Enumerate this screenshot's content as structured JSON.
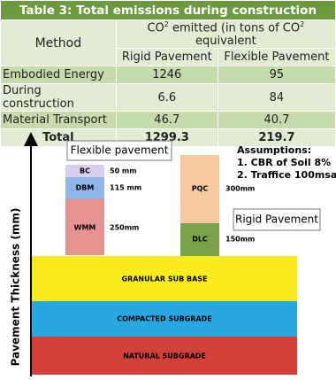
{
  "table": {
    "title": "Table 3: Total emissions during construction",
    "header": {
      "method": "Method",
      "emitted": [
        "CO",
        "2",
        " emitted (in tons of CO",
        "2",
        " equivalent"
      ],
      "columns": [
        "Rigid Pavement",
        "Flexible Pavement"
      ]
    },
    "rows": [
      [
        "Embodied Energy",
        1246,
        95
      ],
      [
        "During construction",
        6.6,
        84
      ],
      [
        "Material Transport",
        46.7,
        40.7
      ],
      [
        "Total",
        1299.3,
        219.7
      ]
    ]
  },
  "diagram": {
    "axis_label": "Pavement Thickness (mm)",
    "flexible": {
      "label": "Flexible pavement",
      "layers": [
        {
          "name": "BC",
          "thickness": "50 mm"
        },
        {
          "name": "DBM",
          "thickness": "115 mm"
        },
        {
          "name": "WMM",
          "thickness": "250mm"
        }
      ]
    },
    "rigid": {
      "label": "Rigid Pavement",
      "layers": [
        {
          "name": "PQC",
          "thickness": "300mm"
        },
        {
          "name": "DLC",
          "thickness": "150mm"
        }
      ]
    },
    "assumptions": [
      "Assumptions:",
      "1. CBR of Soil 8%",
      "2. Traffice 100msa"
    ],
    "base_layers": [
      "GRANULAR SUB BASE",
      "COMPACTED SUBGRADE",
      "NATURAL SUBGRADE"
    ]
  }
}
